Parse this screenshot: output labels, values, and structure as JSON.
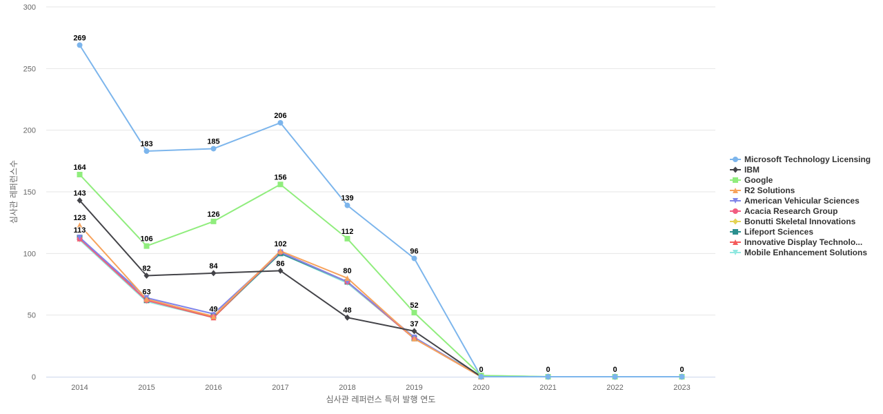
{
  "chart_data": {
    "type": "line",
    "title": "",
    "xlabel": "심사관 레퍼런스 특허 발행 연도",
    "ylabel": "심사관 레퍼런스수",
    "ylim": [
      0,
      300
    ],
    "yticks": [
      0,
      50,
      100,
      150,
      200,
      250,
      300
    ],
    "grid": true,
    "legend_position": "right",
    "categories": [
      "2014",
      "2015",
      "2016",
      "2017",
      "2018",
      "2019",
      "2020",
      "2021",
      "2022",
      "2023"
    ],
    "series": [
      {
        "name": "Microsoft Technology Licensing",
        "color": "#7cb5ec",
        "marker": "circle",
        "values": [
          269,
          183,
          185,
          206,
          139,
          96,
          0,
          0,
          0,
          0
        ]
      },
      {
        "name": "IBM",
        "color": "#434348",
        "marker": "diamond",
        "values": [
          143,
          82,
          84,
          86,
          48,
          37,
          0,
          0,
          0,
          0
        ]
      },
      {
        "name": "Google",
        "color": "#90ed7d",
        "marker": "square",
        "values": [
          164,
          106,
          126,
          156,
          112,
          52,
          1,
          0,
          0,
          0
        ]
      },
      {
        "name": "R2 Solutions",
        "color": "#f7a35c",
        "marker": "triangle",
        "values": [
          123,
          63,
          49,
          102,
          80,
          31,
          0,
          0,
          0,
          0
        ]
      },
      {
        "name": "American Vehicular Sciences",
        "color": "#8085e9",
        "marker": "triangle-down",
        "values": [
          113,
          64,
          51,
          101,
          77,
          32,
          0,
          0,
          0,
          0
        ]
      },
      {
        "name": "Acacia Research Group",
        "color": "#f15c80",
        "marker": "circle",
        "values": [
          112,
          62,
          49,
          101,
          77,
          31,
          0,
          0,
          0,
          0
        ]
      },
      {
        "name": "Bonutti Skeletal Innovations",
        "color": "#e4d354",
        "marker": "diamond",
        "values": [
          112,
          62,
          49,
          101,
          77,
          31,
          0,
          0,
          0,
          0
        ]
      },
      {
        "name": "Lifeport Sciences",
        "color": "#2b908f",
        "marker": "square",
        "values": [
          113,
          62,
          49,
          100,
          77,
          31,
          0,
          0,
          0,
          0
        ]
      },
      {
        "name": "Innovative Display Technolo...",
        "color": "#f45b5b",
        "marker": "triangle",
        "values": [
          112,
          62,
          48,
          101,
          77,
          31,
          0,
          0,
          0,
          0
        ]
      },
      {
        "name": "Mobile Enhancement Solutions",
        "color": "#91e8e1",
        "marker": "triangle-down",
        "values": [
          111,
          61,
          48,
          100,
          76,
          31,
          1,
          0,
          0,
          0
        ]
      }
    ],
    "data_labels": [
      {
        "text": "269",
        "series": 0,
        "index": 0
      },
      {
        "text": "183",
        "series": 0,
        "index": 1
      },
      {
        "text": "185",
        "series": 0,
        "index": 2
      },
      {
        "text": "206",
        "series": 0,
        "index": 3
      },
      {
        "text": "139",
        "series": 0,
        "index": 4
      },
      {
        "text": "96",
        "series": 0,
        "index": 5
      },
      {
        "text": "164",
        "series": 2,
        "index": 0
      },
      {
        "text": "106",
        "series": 2,
        "index": 1
      },
      {
        "text": "126",
        "series": 2,
        "index": 2
      },
      {
        "text": "156",
        "series": 2,
        "index": 3
      },
      {
        "text": "112",
        "series": 2,
        "index": 4
      },
      {
        "text": "52",
        "series": 2,
        "index": 5
      },
      {
        "text": "143",
        "series": 1,
        "index": 0
      },
      {
        "text": "82",
        "series": 1,
        "index": 1
      },
      {
        "text": "84",
        "series": 1,
        "index": 2
      },
      {
        "text": "86",
        "series": 1,
        "index": 3
      },
      {
        "text": "48",
        "series": 1,
        "index": 4
      },
      {
        "text": "37",
        "series": 1,
        "index": 5
      },
      {
        "text": "123",
        "series": 3,
        "index": 0
      },
      {
        "text": "113",
        "series": 4,
        "index": 0
      },
      {
        "text": "63",
        "series": 3,
        "index": 1
      },
      {
        "text": "49",
        "series": 3,
        "index": 2
      },
      {
        "text": "102",
        "series": 3,
        "index": 3
      },
      {
        "text": "80",
        "series": 3,
        "index": 4
      },
      {
        "text": "0",
        "series": 0,
        "index": 6
      },
      {
        "text": "0",
        "series": 0,
        "index": 7
      },
      {
        "text": "0",
        "series": 0,
        "index": 8
      },
      {
        "text": "0",
        "series": 0,
        "index": 9
      }
    ]
  }
}
